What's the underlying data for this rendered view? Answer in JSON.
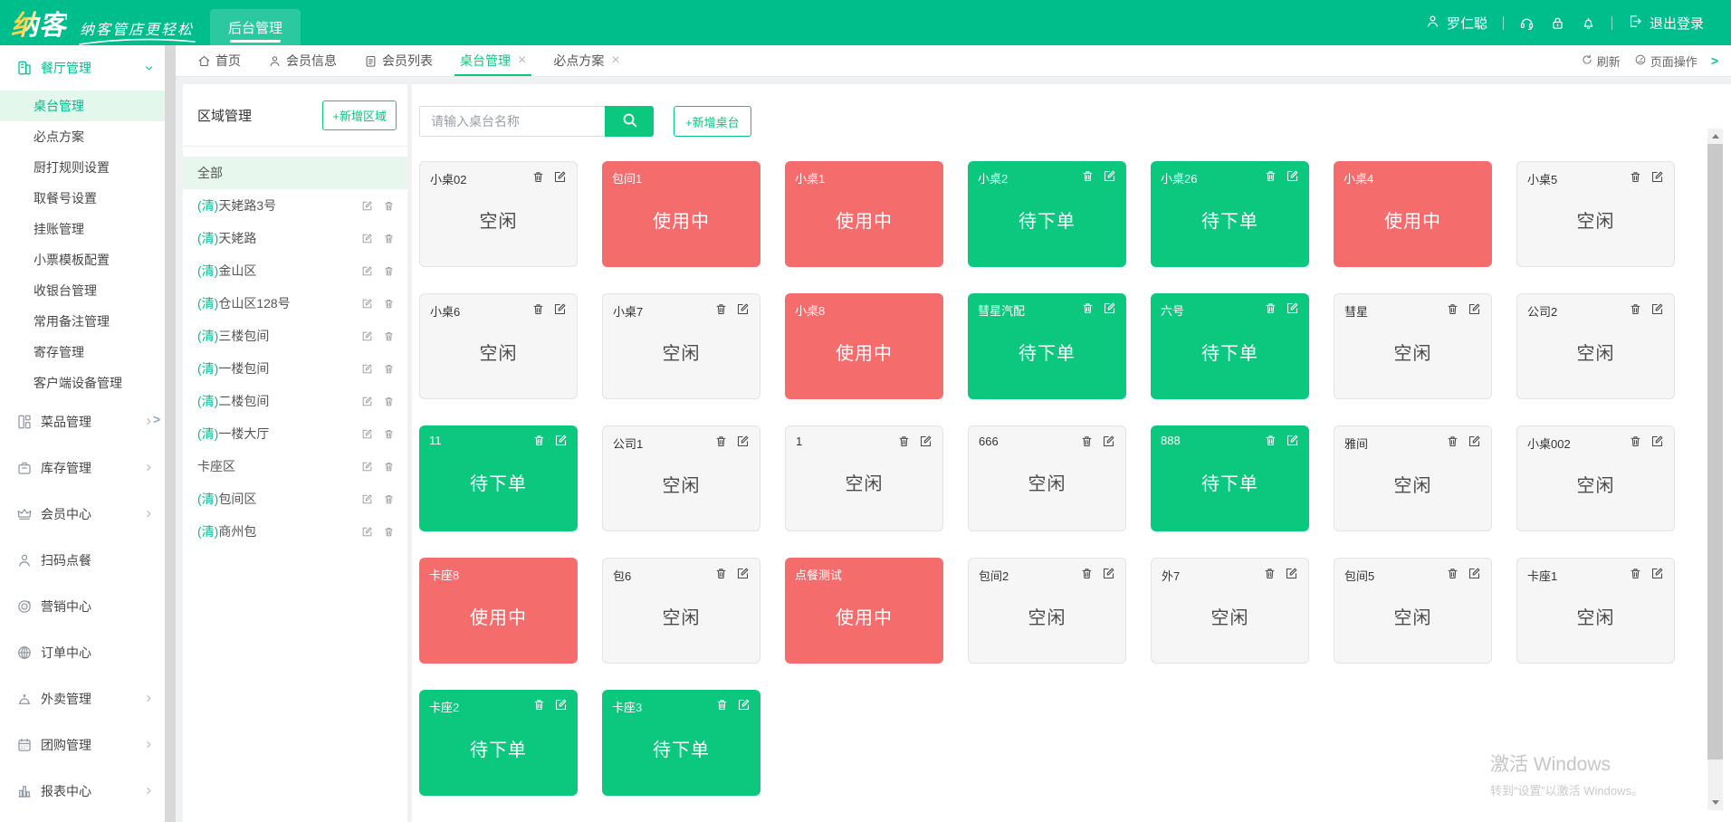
{
  "colors": {
    "navbar_green": "#00be8c",
    "accent_green": "#0cc87f",
    "busy_red": "#f56c6c",
    "idle_gray": "#f6f6f6",
    "active_row_green": "#e3f7ec"
  },
  "navbar": {
    "logo": "纳客",
    "tagline": "纳客管店更轻松",
    "backend_tab": "后台管理",
    "username": "罗仁聪",
    "logout_label": "退出登录"
  },
  "tabbar": {
    "tabs": [
      {
        "id": "home",
        "label": "首页",
        "icon": "home"
      },
      {
        "id": "member-info",
        "label": "会员信息",
        "icon": "person"
      },
      {
        "id": "member-list",
        "label": "会员列表",
        "icon": "doc"
      },
      {
        "id": "table-management",
        "label": "桌台管理",
        "active": true,
        "closable": true
      },
      {
        "id": "required-plan",
        "label": "必点方案",
        "closable": true
      }
    ],
    "refresh_label": "刷新",
    "page_ops_label": "页面操作"
  },
  "sidebar": {
    "sections": [
      {
        "id": "restaurant",
        "icon": "store",
        "label": "餐厅管理",
        "expanded": true,
        "children": [
          {
            "id": "table-management",
            "label": "桌台管理",
            "active": true
          },
          {
            "id": "required-plan",
            "label": "必点方案"
          },
          {
            "id": "kitchen-print-rules",
            "label": "厨打规则设置"
          },
          {
            "id": "pickup-number",
            "label": "取餐号设置"
          },
          {
            "id": "credit-account",
            "label": "挂账管理"
          },
          {
            "id": "receipt-template",
            "label": "小票模板配置"
          },
          {
            "id": "cashier",
            "label": "收银台管理"
          },
          {
            "id": "common-remarks",
            "label": "常用备注管理"
          },
          {
            "id": "storage",
            "label": "寄存管理"
          },
          {
            "id": "client-devices",
            "label": "客户端设备管理"
          }
        ]
      },
      {
        "id": "dishes",
        "icon": "dish",
        "label": "菜品管理",
        "chevron": true
      },
      {
        "id": "inventory",
        "icon": "box",
        "label": "库存管理",
        "chevron": true
      },
      {
        "id": "member-center",
        "icon": "crown",
        "label": "会员中心",
        "chevron": true
      },
      {
        "id": "scan-order",
        "icon": "person",
        "label": "扫码点餐"
      },
      {
        "id": "marketing",
        "icon": "target",
        "label": "营销中心"
      },
      {
        "id": "order-center",
        "icon": "globe",
        "label": "订单中心"
      },
      {
        "id": "takeout",
        "icon": "cloche",
        "label": "外卖管理",
        "chevron": true
      },
      {
        "id": "group-buy",
        "icon": "calendar",
        "label": "团购管理",
        "chevron": true
      },
      {
        "id": "reports",
        "icon": "chart",
        "label": "报表中心",
        "chevron": true
      }
    ]
  },
  "region_panel": {
    "title": "区域管理",
    "add_region_label": "+新增区域",
    "areas": [
      {
        "name": "全部",
        "selected": true
      },
      {
        "prefix": "(清)",
        "name": "天姥路3号",
        "actions": true
      },
      {
        "prefix": "(清)",
        "name": "天姥路",
        "actions": true
      },
      {
        "prefix": "(清)",
        "name": "金山区",
        "actions": true
      },
      {
        "prefix": "(清)",
        "name": "仓山区128号",
        "actions": true
      },
      {
        "prefix": "(清)",
        "name": "三楼包间",
        "actions": true
      },
      {
        "prefix": "(清)",
        "name": "一楼包间",
        "actions": true
      },
      {
        "prefix": "(清)",
        "name": "二楼包间",
        "actions": true
      },
      {
        "prefix": "(清)",
        "name": "一楼大厅",
        "actions": true
      },
      {
        "name": "卡座区",
        "actions": true
      },
      {
        "prefix": "(清)",
        "name": "包间区",
        "actions": true
      },
      {
        "prefix": "(清)",
        "name": "商州包",
        "actions": true
      }
    ]
  },
  "toolbar": {
    "search_placeholder": "请输入桌台名称",
    "add_table_label": "+新增桌台"
  },
  "tables": {
    "status_labels": {
      "idle": "空闲",
      "busy": "使用中",
      "pending": "待下单"
    },
    "cards": [
      {
        "name": "小桌02",
        "status": "idle"
      },
      {
        "name": "包间1",
        "status": "busy"
      },
      {
        "name": "小桌1",
        "status": "busy"
      },
      {
        "name": "小桌2",
        "status": "pending"
      },
      {
        "name": "小桌26",
        "status": "pending"
      },
      {
        "name": "小桌4",
        "status": "busy"
      },
      {
        "name": "小桌5",
        "status": "idle"
      },
      {
        "name": "小桌6",
        "status": "idle"
      },
      {
        "name": "小桌7",
        "status": "idle"
      },
      {
        "name": "小桌8",
        "status": "busy"
      },
      {
        "name": "彗星汽配",
        "status": "pending"
      },
      {
        "name": "六号",
        "status": "pending"
      },
      {
        "name": "彗星",
        "status": "idle"
      },
      {
        "name": "公司2",
        "status": "idle"
      },
      {
        "name": "11",
        "status": "pending"
      },
      {
        "name": "公司1",
        "status": "idle"
      },
      {
        "name": "1",
        "status": "idle"
      },
      {
        "name": "666",
        "status": "idle"
      },
      {
        "name": "888",
        "status": "pending"
      },
      {
        "name": "雅间",
        "status": "idle"
      },
      {
        "name": "小桌002",
        "status": "idle"
      },
      {
        "name": "卡座8",
        "status": "busy"
      },
      {
        "name": "包6",
        "status": "idle"
      },
      {
        "name": "点餐测试",
        "status": "busy"
      },
      {
        "name": "包间2",
        "status": "idle"
      },
      {
        "name": "外7",
        "status": "idle"
      },
      {
        "name": "包间5",
        "status": "idle"
      },
      {
        "name": "卡座1",
        "status": "idle"
      },
      {
        "name": "卡座2",
        "status": "pending"
      },
      {
        "name": "卡座3",
        "status": "pending"
      }
    ]
  },
  "watermark": {
    "line1": "激活 Windows",
    "line2": "转到“设置”以激活 Windows。"
  }
}
